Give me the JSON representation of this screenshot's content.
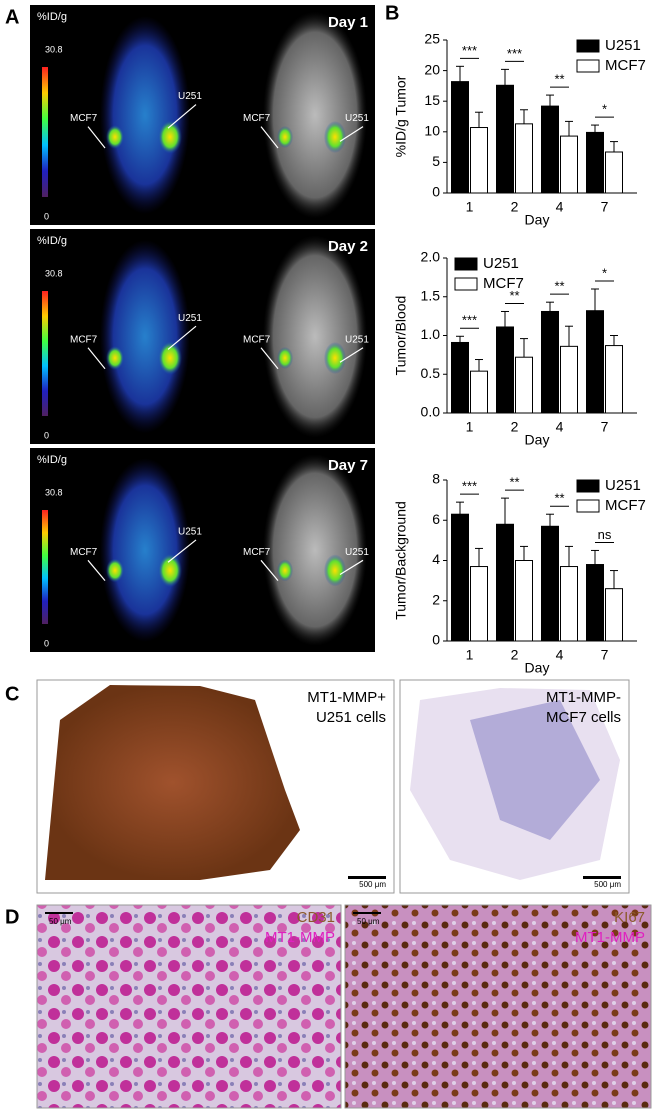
{
  "panel_labels": [
    "A",
    "B",
    "C",
    "D"
  ],
  "panel_a": {
    "rows": [
      {
        "unit": "%ID/g",
        "scale_max": "30.8",
        "scale_min": "0",
        "day": "Day 1",
        "labels": [
          "MCF7",
          "U251",
          "MCF7",
          "U251"
        ]
      },
      {
        "unit": "%ID/g",
        "scale_max": "30.8",
        "scale_min": "0",
        "day": "Day 2",
        "labels": [
          "MCF7",
          "U251",
          "MCF7",
          "U251"
        ]
      },
      {
        "unit": "%ID/g",
        "scale_max": "30.8",
        "scale_min": "0",
        "day": "Day 7",
        "labels": [
          "MCF7",
          "U251",
          "MCF7",
          "U251"
        ]
      }
    ]
  },
  "chart_data": [
    {
      "type": "bar",
      "ylabel": "%ID/g Tumor",
      "xlabel": "Day",
      "categories": [
        "1",
        "2",
        "4",
        "7"
      ],
      "series": [
        {
          "name": "U251",
          "color": "#000000",
          "values": [
            18.2,
            17.6,
            14.2,
            9.9
          ],
          "errors": [
            2.5,
            2.6,
            1.8,
            1.2
          ]
        },
        {
          "name": "MCF7",
          "color": "#ffffff",
          "values": [
            10.7,
            11.3,
            9.3,
            6.7
          ],
          "errors": [
            2.5,
            2.3,
            2.4,
            1.7
          ]
        }
      ],
      "significance": [
        "***",
        "***",
        "**",
        "*"
      ],
      "ylim": [
        0,
        25
      ],
      "yticks": [
        0,
        5,
        10,
        15,
        20,
        25
      ],
      "legend": "upper right"
    },
    {
      "type": "bar",
      "ylabel": "Tumor/Blood",
      "xlabel": "Day",
      "categories": [
        "1",
        "2",
        "4",
        "7"
      ],
      "series": [
        {
          "name": "U251",
          "color": "#000000",
          "values": [
            0.91,
            1.11,
            1.31,
            1.32
          ],
          "errors": [
            0.08,
            0.2,
            0.12,
            0.28
          ]
        },
        {
          "name": "MCF7",
          "color": "#ffffff",
          "values": [
            0.54,
            0.72,
            0.86,
            0.87
          ],
          "errors": [
            0.15,
            0.24,
            0.26,
            0.13
          ]
        }
      ],
      "significance": [
        "***",
        "**",
        "**",
        "*"
      ],
      "ylim": [
        0,
        2
      ],
      "yticks": [
        {
          "value": 0,
          "label": "0.0"
        },
        0.5,
        {
          "value": 1,
          "label": "1.0"
        },
        1.5,
        {
          "value": 2,
          "label": "2.0"
        }
      ],
      "legend": "upper left"
    },
    {
      "type": "bar",
      "ylabel": "Tumor/Background",
      "xlabel": "Day",
      "categories": [
        "1",
        "2",
        "4",
        "7"
      ],
      "series": [
        {
          "name": "U251",
          "color": "#000000",
          "values": [
            6.3,
            5.8,
            5.7,
            3.8
          ],
          "errors": [
            0.6,
            1.3,
            0.6,
            0.7
          ]
        },
        {
          "name": "MCF7",
          "color": "#ffffff",
          "values": [
            3.7,
            4.0,
            3.7,
            2.6
          ],
          "errors": [
            0.9,
            0.7,
            1.0,
            0.9
          ]
        }
      ],
      "significance": [
        "***",
        "**",
        "**",
        "ns"
      ],
      "ylim": [
        0,
        8
      ],
      "yticks": [
        0,
        2,
        4,
        6,
        8
      ],
      "legend": "upper right"
    }
  ],
  "panel_c": {
    "images": [
      {
        "lines": [
          "MT1-MMP+",
          "U251 cells"
        ],
        "scale": "500 μm"
      },
      {
        "lines": [
          "MT1-MMP-",
          "MCF7 cells"
        ],
        "scale": "500 μm"
      }
    ]
  },
  "panel_d": {
    "images": [
      {
        "stain": "CD31",
        "stain2": "MT1-MMP",
        "scale": "50 μm"
      },
      {
        "stain": "KI67",
        "stain2": "MT1-MMP",
        "scale": "50 μm"
      }
    ]
  }
}
